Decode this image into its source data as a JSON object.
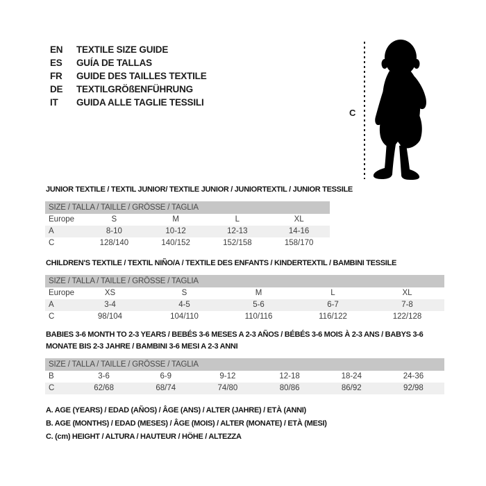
{
  "colors": {
    "background": "#ffffff",
    "header_bar": "#c6c6c6",
    "row_alt": "#efefef",
    "silhouette": "#000000",
    "text": "#3c3c3c",
    "heading_text": "#141414"
  },
  "languages": [
    {
      "code": "EN",
      "label": "TEXTILE SIZE GUIDE"
    },
    {
      "code": "ES",
      "label": "GUÍA DE TALLAS"
    },
    {
      "code": "FR",
      "label": "GUIDE DES TAILLES TEXTILE"
    },
    {
      "code": "DE",
      "label": "TEXTILGRÖßENFÜHRUNG"
    },
    {
      "code": "IT",
      "label": "GUIDA ALLE TAGLIE TESSILI"
    }
  ],
  "figure": {
    "description": "baby-silhouette",
    "measure_label": "C"
  },
  "tables": [
    {
      "title": "JUNIOR TEXTILE / TEXTIL JUNIOR/ TEXTILE JUNIOR / JUNIORTEXTIL / JUNIOR TESSILE",
      "size_header": "SIZE / TALLA / TAILLE / GRÖSSE / TAGLIA",
      "rows": [
        {
          "label": "Europe",
          "values": [
            "S",
            "M",
            "L",
            "XL"
          ]
        },
        {
          "label": "A",
          "values": [
            "8-10",
            "10-12",
            "12-13",
            "14-16"
          ]
        },
        {
          "label": "C",
          "values": [
            "128/140",
            "140/152",
            "152/158",
            "158/170"
          ]
        }
      ]
    },
    {
      "title": "CHILDREN'S TEXTILE / TEXTIL NIÑO/A / TEXTILE DES ENFANTS / KINDERTEXTIL / BAMBINI TESSILE",
      "size_header": "SIZE / TALLA / TAILLE / GRÖSSE / TAGLIA",
      "rows": [
        {
          "label": "Europe",
          "values": [
            "XS",
            "S",
            "M",
            "L",
            "XL"
          ]
        },
        {
          "label": "A",
          "values": [
            "3-4",
            "4-5",
            "5-6",
            "6-7",
            "7-8"
          ]
        },
        {
          "label": "C",
          "values": [
            "98/104",
            "104/110",
            "110/116",
            "116/122",
            "122/128"
          ]
        }
      ]
    },
    {
      "title": "BABIES 3-6 MONTH TO 2-3 YEARS / BEBÉS 3-6 MESES A 2-3 AÑOS / BÉBÉS 3-6 MOIS À 2-3 ANS / BABYS 3-6 MONATE BIS 2-3 JAHRE / BAMBINI 3-6 MESI A 2-3 ANNI",
      "size_header": "SIZE / TALLA / TAILLE / GRÖSSE / TAGLIA",
      "rows": [
        {
          "label": "B",
          "values": [
            "3-6",
            "6-9",
            "9-12",
            "12-18",
            "18-24",
            "24-36"
          ]
        },
        {
          "label": "C",
          "values": [
            "62/68",
            "68/74",
            "74/80",
            "80/86",
            "86/92",
            "92/98"
          ]
        }
      ]
    }
  ],
  "footnotes": [
    "A. AGE (YEARS) / EDAD (AÑOS) / ÂGE (ANS) / ALTER (JAHRE) / ETÀ (ANNI)",
    "B. AGE (MONTHS) / EDAD (MESES) / ÂGE (MOIS) / ALTER (MONATE) / ETÀ (MESI)",
    "C. (cm) HEIGHT / ALTURA / HAUTEUR / HÖHE / ALTEZZA"
  ]
}
